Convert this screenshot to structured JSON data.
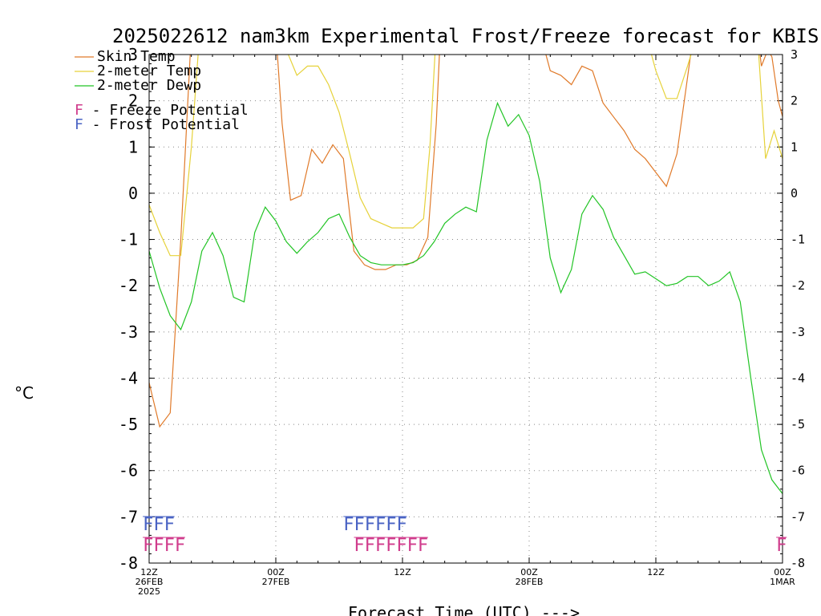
{
  "chart_data": {
    "type": "line",
    "title": "2025022612 nam3km Experimental Frost/Freeze forecast for KBIS",
    "ylabel": "°C",
    "xlabel": "Forecast Time (UTC) --->",
    "ylim": [
      -8,
      3
    ],
    "xlim_hours": [
      0,
      36
    ],
    "grid": true,
    "legend_position": "top-left",
    "y_ticks": [
      -8,
      -7,
      -6,
      -5,
      -4,
      -3,
      -2,
      -1,
      0,
      1,
      2,
      3
    ],
    "x_ticks": [
      {
        "hour": 0,
        "lines": [
          "12Z",
          "26FEB",
          "2025"
        ]
      },
      {
        "hour": 6,
        "lines": [
          "00Z",
          "27FEB"
        ]
      },
      {
        "hour": 12,
        "lines": [
          "12Z"
        ]
      },
      {
        "hour": 18,
        "lines": [
          "00Z",
          "28FEB"
        ]
      },
      {
        "hour": 24,
        "lines": [
          "12Z"
        ]
      },
      {
        "hour": 30,
        "lines": [
          "00Z",
          "1MAR"
        ]
      }
    ],
    "series": [
      {
        "name": "Skin Temp",
        "color": "#e07a2a",
        "points": [
          [
            0,
            -4.1
          ],
          [
            0.5,
            -5.05
          ],
          [
            1,
            -4.75
          ],
          [
            1.5,
            -1
          ],
          [
            2,
            3.5
          ],
          [
            5,
            3.5
          ],
          [
            6,
            3.5
          ],
          [
            6.3,
            1.5
          ],
          [
            6.7,
            -0.15
          ],
          [
            7.2,
            -0.05
          ],
          [
            7.7,
            0.95
          ],
          [
            8.2,
            0.65
          ],
          [
            8.7,
            1.05
          ],
          [
            9.2,
            0.75
          ],
          [
            9.7,
            -1.25
          ],
          [
            10.2,
            -1.55
          ],
          [
            10.7,
            -1.65
          ],
          [
            11.2,
            -1.65
          ],
          [
            11.7,
            -1.55
          ],
          [
            12.2,
            -1.55
          ],
          [
            12.7,
            -1.45
          ],
          [
            13.2,
            -0.95
          ],
          [
            13.6,
            1.5
          ],
          [
            13.8,
            3.5
          ],
          [
            18.5,
            3.5
          ],
          [
            19,
            2.65
          ],
          [
            19.5,
            2.55
          ],
          [
            20,
            2.35
          ],
          [
            20.5,
            2.75
          ],
          [
            21,
            2.65
          ],
          [
            21.5,
            1.95
          ],
          [
            22,
            1.65
          ],
          [
            22.5,
            1.35
          ],
          [
            23,
            0.95
          ],
          [
            23.5,
            0.75
          ],
          [
            24,
            0.45
          ],
          [
            24.5,
            0.15
          ],
          [
            25,
            0.85
          ],
          [
            25.5,
            2.5
          ],
          [
            25.8,
            3.5
          ],
          [
            28.8,
            3.5
          ],
          [
            29,
            2.75
          ],
          [
            29.3,
            3.1
          ],
          [
            29.5,
            2.95
          ],
          [
            29.8,
            2.0
          ],
          [
            30.3,
            1.15
          ],
          [
            30.6,
            -1.1
          ]
        ]
      },
      {
        "name": "2-meter Temp",
        "color": "#e6d23a",
        "points": [
          [
            0,
            -0.25
          ],
          [
            0.5,
            -0.85
          ],
          [
            1,
            -1.35
          ],
          [
            1.5,
            -1.35
          ],
          [
            2,
            1.0
          ],
          [
            2.4,
            3.5
          ],
          [
            6,
            3.5
          ],
          [
            6.5,
            3.1
          ],
          [
            7,
            2.55
          ],
          [
            7.5,
            2.75
          ],
          [
            8,
            2.75
          ],
          [
            8.5,
            2.35
          ],
          [
            9,
            1.75
          ],
          [
            9.5,
            0.85
          ],
          [
            10,
            -0.1
          ],
          [
            10.5,
            -0.55
          ],
          [
            11,
            -0.65
          ],
          [
            11.5,
            -0.75
          ],
          [
            12,
            -0.75
          ],
          [
            12.5,
            -0.75
          ],
          [
            13,
            -0.55
          ],
          [
            13.3,
            1.0
          ],
          [
            13.6,
            3.5
          ],
          [
            23.5,
            3.5
          ],
          [
            24,
            2.65
          ],
          [
            24.5,
            2.05
          ],
          [
            25,
            2.05
          ],
          [
            25.5,
            2.75
          ],
          [
            26,
            3.5
          ],
          [
            28.8,
            3.5
          ],
          [
            29.2,
            0.75
          ],
          [
            29.6,
            1.35
          ],
          [
            30,
            0.75
          ],
          [
            30.3,
            0.0
          ],
          [
            30.6,
            -1.25
          ]
        ]
      },
      {
        "name": "2-meter Dewp",
        "color": "#22c425",
        "points": [
          [
            0,
            -1.25
          ],
          [
            0.5,
            -2.05
          ],
          [
            1,
            -2.65
          ],
          [
            1.5,
            -2.95
          ],
          [
            2,
            -2.35
          ],
          [
            2.5,
            -1.25
          ],
          [
            3,
            -0.85
          ],
          [
            3.5,
            -1.35
          ],
          [
            4,
            -2.25
          ],
          [
            4.5,
            -2.35
          ],
          [
            5,
            -0.85
          ],
          [
            5.5,
            -0.3
          ],
          [
            6,
            -0.6
          ],
          [
            6.5,
            -1.05
          ],
          [
            7,
            -1.3
          ],
          [
            7.5,
            -1.05
          ],
          [
            8,
            -0.85
          ],
          [
            8.5,
            -0.55
          ],
          [
            9,
            -0.45
          ],
          [
            9.5,
            -0.95
          ],
          [
            10,
            -1.35
          ],
          [
            10.5,
            -1.5
          ],
          [
            11,
            -1.55
          ],
          [
            11.5,
            -1.55
          ],
          [
            12,
            -1.55
          ],
          [
            12.5,
            -1.5
          ],
          [
            13,
            -1.35
          ],
          [
            13.5,
            -1.05
          ],
          [
            14,
            -0.65
          ],
          [
            14.5,
            -0.45
          ],
          [
            15,
            -0.3
          ],
          [
            15.5,
            -0.4
          ],
          [
            16,
            1.15
          ],
          [
            16.5,
            1.95
          ],
          [
            17,
            1.45
          ],
          [
            17.5,
            1.7
          ],
          [
            18,
            1.25
          ],
          [
            18.5,
            0.25
          ],
          [
            19,
            -1.4
          ],
          [
            19.5,
            -2.15
          ],
          [
            20,
            -1.65
          ],
          [
            20.5,
            -0.45
          ],
          [
            21,
            -0.05
          ],
          [
            21.5,
            -0.35
          ],
          [
            22,
            -0.95
          ],
          [
            22.5,
            -1.35
          ],
          [
            23,
            -1.75
          ],
          [
            23.5,
            -1.7
          ],
          [
            24,
            -1.85
          ],
          [
            24.5,
            -2.0
          ],
          [
            25,
            -1.95
          ],
          [
            25.5,
            -1.8
          ],
          [
            26,
            -1.8
          ],
          [
            26.5,
            -2.0
          ],
          [
            27,
            -1.9
          ],
          [
            27.5,
            -1.7
          ],
          [
            28,
            -2.35
          ],
          [
            28.5,
            -4.0
          ],
          [
            29,
            -5.55
          ],
          [
            29.5,
            -6.2
          ],
          [
            30,
            -6.5
          ]
        ]
      }
    ],
    "potential_legend": [
      {
        "letter": "F",
        "text": " - Freeze Potential",
        "color": "#d03c8c"
      },
      {
        "letter": "F",
        "text": " - Frost Potential",
        "color": "#4a63c4"
      }
    ],
    "frost_flags": [
      {
        "hour_start": -0.3,
        "text": "FFF",
        "color": "#4a63c4",
        "row": "frost"
      },
      {
        "hour_start": 9.2,
        "text": "FFFFFF",
        "color": "#4a63c4",
        "row": "frost"
      }
    ],
    "freeze_flags": [
      {
        "hour_start": -0.3,
        "text": "FFFF",
        "color": "#d03c8c",
        "row": "freeze"
      },
      {
        "hour_start": 9.7,
        "text": "FFFFFFF",
        "color": "#d03c8c",
        "row": "freeze"
      },
      {
        "hour_start": 29.7,
        "text": "F",
        "color": "#d03c8c",
        "row": "freeze"
      }
    ]
  }
}
